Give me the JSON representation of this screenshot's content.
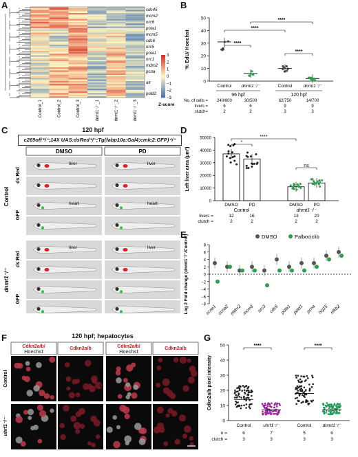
{
  "panels": {
    "A": {
      "label": "A",
      "columns": [
        "Control_1",
        "Control_2",
        "Control_3",
        "dnmt1⁻/⁻_1",
        "dnmt1⁻/⁻_2",
        "dnmt1⁻/⁻_3"
      ],
      "genes": [
        "cdc45",
        "mcm2",
        "orc6",
        "pola1",
        "mcm5",
        "cdc6",
        "orc5",
        "pola1",
        "orc1",
        "mdm2",
        "pcna",
        "atr",
        "pold2"
      ],
      "colorbar_ticks": [
        "3",
        "2",
        "1",
        "0",
        "−1",
        "−2",
        "−3"
      ],
      "colorbar_title": "Z-score",
      "colors": {
        "high": "#d73027",
        "mid": "#fff5c0",
        "low": "#4575b4"
      }
    },
    "B": {
      "label": "B",
      "ylabel": "% EdU/ Hoechst",
      "yticks": [
        "0",
        "10",
        "20",
        "30",
        "40",
        "50"
      ],
      "groups": [
        "Control",
        "dnmt1⁻/⁻",
        "Control",
        "dnmt1⁻/⁻"
      ],
      "timepoints": [
        "96 hpf",
        "120 hpf"
      ],
      "row_labels": [
        "No. of cells =",
        "livers =",
        "clutch="
      ],
      "cells": [
        "240/800",
        "30/500",
        "62/750",
        "14/700"
      ],
      "livers": [
        "6",
        "6",
        "9",
        "9"
      ],
      "clutch": [
        "2",
        "2",
        "3",
        "3"
      ],
      "sig": [
        "****",
        "****",
        "****",
        "****"
      ]
    },
    "C": {
      "label": "C",
      "title": "120 hpf",
      "genotype": "c269off⁺/⁻;14X UAS:dsRed⁺/⁻;Tg(fabp10a:Gal4;cmlc2:GFP)⁺/⁻",
      "col_headers": [
        "DMSO",
        "PD"
      ],
      "row_groups": [
        "Control",
        "dnmt1⁻/⁻"
      ],
      "row_labels": [
        "ds:Red",
        "GFP",
        "ds:Red",
        "GFP"
      ],
      "annotations": {
        "liver": "liver",
        "heart": "heart"
      }
    },
    "D": {
      "label": "D",
      "ylabel": "Left liver area (μm²)",
      "yticks": [
        "0",
        "10000",
        "20000",
        "30000",
        "40000",
        "50000"
      ],
      "groups": [
        "DMSO",
        "PD",
        "DMSO",
        "PD"
      ],
      "genotypes": [
        "Control",
        "dnmt1⁻/⁻"
      ],
      "livers": [
        "12",
        "16",
        "13",
        "20"
      ],
      "clutch": [
        "2",
        "2",
        "2",
        "2"
      ],
      "row_labels": [
        "livers =",
        "clutch ="
      ],
      "sig": [
        "*",
        "****",
        "ns"
      ]
    },
    "E": {
      "label": "E",
      "legend": [
        "DMSO",
        "Palbociclib"
      ],
      "ylabel": "Log 2 Fold change (dnmt1⁻/⁻/Control)",
      "yticks": [
        "8",
        "6",
        "4",
        "2",
        "0",
        "−2",
        "−4",
        "−6",
        "−8"
      ],
      "genes": [
        "ccne1",
        "ccna2",
        "mdm2",
        "mcm3",
        "orc3",
        "cdc6",
        "pola1",
        "pold1",
        "pcna",
        "isg15",
        "nfkb2"
      ],
      "colors": {
        "dmso": "#555555",
        "palbo": "#2e9e4f"
      }
    },
    "F": {
      "label": "F",
      "title": "120 hpf; hepatocytes",
      "headers": [
        "Cdkn2a/b/",
        "Hoechst",
        "Cdkn2a/b",
        "Cdkn2a/b/",
        "Hoechst",
        "Cdkn2a/b"
      ],
      "rows_left": [
        "Control",
        "uhrf1⁻/⁻"
      ],
      "rows_right": [
        "Control",
        "dnmt1⁻/⁻"
      ]
    },
    "G": {
      "label": "G",
      "ylabel": "Cdkn2a/b pixel intensity",
      "yticks": [
        "0",
        "10",
        "20",
        "30",
        "40",
        "50"
      ],
      "groups": [
        "Control",
        "uhrf1⁻/⁻",
        "Control",
        "dnmt1⁻/⁻"
      ],
      "n": [
        "6",
        "7",
        "5",
        "6"
      ],
      "clutch": [
        "3",
        "3",
        "3",
        "3"
      ],
      "row_labels": [
        "n =",
        "clutch ="
      ],
      "sig": [
        "****",
        "****"
      ],
      "colors": {
        "control": "#222222",
        "uhrf1": "#a020a0",
        "dnmt1": "#1e9e5a"
      }
    }
  }
}
